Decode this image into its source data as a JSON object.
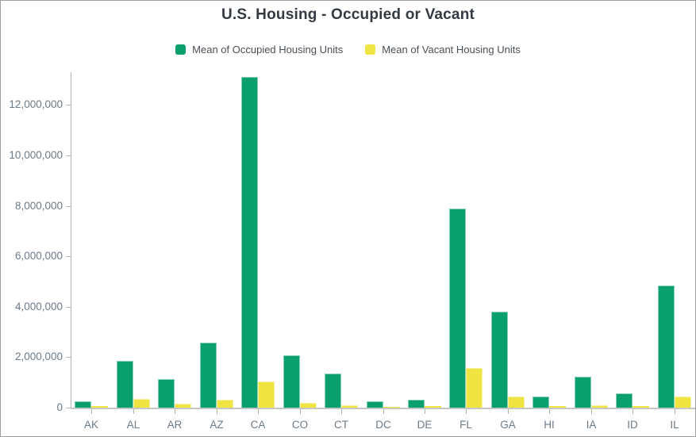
{
  "window": {
    "title": "U.S. Housing - Occupied or Vacant"
  },
  "chart_data": {
    "type": "bar",
    "title": "U.S. Housing - Occupied or Vacant",
    "categories": [
      "AK",
      "AL",
      "AR",
      "AZ",
      "CA",
      "CO",
      "CT",
      "DC",
      "DE",
      "FL",
      "GA",
      "HI",
      "IA",
      "ID",
      "IL"
    ],
    "series": [
      {
        "name": "Mean of Occupied Housing Units",
        "color": "#0aa06e",
        "border_color": "#83d0b4",
        "values": [
          240000,
          1850000,
          1120000,
          2570000,
          13100000,
          2080000,
          1340000,
          240000,
          320000,
          7900000,
          3790000,
          440000,
          1230000,
          580000,
          4830000
        ]
      },
      {
        "name": "Mean of Vacant Housing Units",
        "color": "#f0e442",
        "border_color": "#f6f0a0",
        "values": [
          60000,
          355000,
          150000,
          330000,
          1050000,
          185000,
          95000,
          25000,
          55000,
          1570000,
          450000,
          60000,
          100000,
          55000,
          440000
        ]
      }
    ],
    "xlabel": "",
    "ylabel": "",
    "ylim": [
      0,
      13300000
    ],
    "ytick_step": 2000000,
    "ytick_values": [
      0,
      2000000,
      4000000,
      6000000,
      8000000,
      10000000,
      12000000
    ],
    "ytick_labels": [
      "0",
      "2,000,000",
      "4,000,000",
      "6,000,000",
      "8,000,000",
      "10,000,000",
      "12,000,000"
    ],
    "legend_position": "top",
    "grid": false
  },
  "colors": {
    "background": "#ffffff",
    "canvas_border": "#9f9f9f",
    "axis_line": "#b3b3b3",
    "baseline": "#c6c6c6",
    "axis_label": "#6d7a87",
    "title_text": "#333a41",
    "legend_text": "#4a5057"
  }
}
